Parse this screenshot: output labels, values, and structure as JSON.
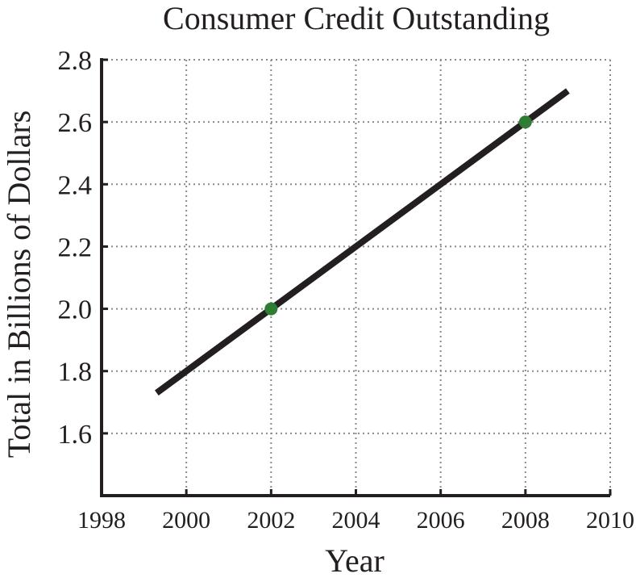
{
  "chart_data": {
    "type": "line",
    "title": "Consumer Credit Outstanding",
    "xlabel": "Year",
    "ylabel": "Total in Billions of Dollars",
    "xlim": [
      1998,
      2010
    ],
    "ylim": [
      1.4,
      2.8
    ],
    "x_ticks": [
      1998,
      2000,
      2002,
      2004,
      2006,
      2008,
      2010
    ],
    "x_tick_labels": [
      "1998",
      "2000",
      "2002",
      "2004",
      "2006",
      "2008",
      "2010"
    ],
    "y_ticks": [
      1.6,
      1.8,
      2.0,
      2.2,
      2.4,
      2.6,
      2.8
    ],
    "y_tick_labels": [
      "1.6",
      "1.8",
      "2.0",
      "2.2",
      "2.4",
      "2.6",
      "2.8"
    ],
    "grid": true,
    "series": [
      {
        "x": [
          1999.3,
          2009.0
        ],
        "y": [
          1.73,
          2.7
        ],
        "color": "#231f20"
      }
    ],
    "points": [
      {
        "x": 2002,
        "y": 2.0,
        "color": "#2e7d32"
      },
      {
        "x": 2008,
        "y": 2.6,
        "color": "#2e7d32"
      }
    ]
  }
}
